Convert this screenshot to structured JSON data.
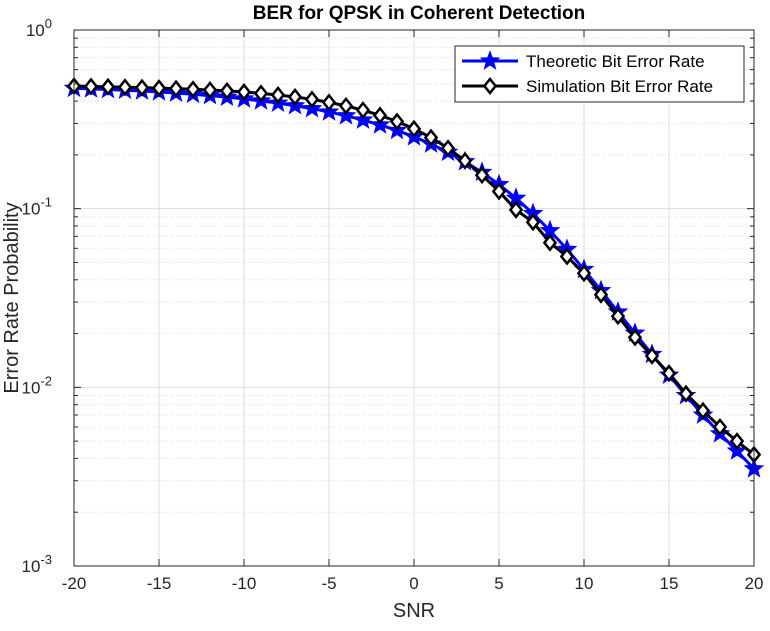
{
  "chart_data": {
    "type": "line",
    "title": "BER for QPSK in Coherent Detection",
    "xlabel": "SNR",
    "ylabel": "Error Rate Probability",
    "xlim": [
      -20,
      20
    ],
    "ylim": [
      0.001,
      1
    ],
    "yscale": "log",
    "grid": true,
    "minor_grid": true,
    "legend_position": "top-right",
    "x_ticks": [
      -20,
      -15,
      -10,
      -5,
      0,
      5,
      10,
      15,
      20
    ],
    "x_tick_labels": [
      "-20",
      "-15",
      "-10",
      "-5",
      "0",
      "5",
      "10",
      "15",
      "20"
    ],
    "y_ticks": [
      {
        "value": 0.001,
        "base": "10",
        "exp": "-3"
      },
      {
        "value": 0.01,
        "base": "10",
        "exp": "-2"
      },
      {
        "value": 0.1,
        "base": "10",
        "exp": "-1"
      },
      {
        "value": 1,
        "base": "10",
        "exp": "0"
      }
    ],
    "x": [
      -20,
      -19,
      -18,
      -17,
      -16,
      -15,
      -14,
      -13,
      -12,
      -11,
      -10,
      -9,
      -8,
      -7,
      -6,
      -5,
      -4,
      -3,
      -2,
      -1,
      0,
      1,
      2,
      3,
      4,
      5,
      6,
      7,
      8,
      9,
      10,
      11,
      12,
      13,
      14,
      15,
      16,
      17,
      18,
      19,
      20
    ],
    "series": [
      {
        "name": "Theoretic Bit Error Rate",
        "color": "#0000ff",
        "marker": "star",
        "values": [
          0.4718,
          0.4683,
          0.4645,
          0.4602,
          0.4553,
          0.4499,
          0.4438,
          0.437,
          0.4294,
          0.4209,
          0.4115,
          0.4011,
          0.3896,
          0.3769,
          0.363,
          0.3478,
          0.3313,
          0.3134,
          0.2943,
          0.2741,
          0.2525,
          0.2301,
          0.2069,
          0.1833,
          0.1597,
          0.1365,
          0.1144,
          0.0939,
          0.0753,
          0.0592,
          0.0457,
          0.0348,
          0.0264,
          0.0201,
          0.0153,
          0.0117,
          0.009,
          0.007,
          0.0055,
          0.0044,
          0.0035
        ]
      },
      {
        "name": "Simulation Bit Error Rate",
        "color": "#000000",
        "marker": "diamond",
        "values": [
          0.4855,
          0.483,
          0.481,
          0.4785,
          0.476,
          0.473,
          0.47,
          0.466,
          0.4615,
          0.456,
          0.4495,
          0.442,
          0.433,
          0.422,
          0.409,
          0.3935,
          0.376,
          0.356,
          0.333,
          0.3075,
          0.28,
          0.25,
          0.218,
          0.1855,
          0.154,
          0.125,
          0.0985,
          0.084,
          0.0645,
          0.054,
          0.0435,
          0.033,
          0.025,
          0.019,
          0.015,
          0.012,
          0.0092,
          0.0074,
          0.006,
          0.005,
          0.0042
        ]
      }
    ]
  }
}
